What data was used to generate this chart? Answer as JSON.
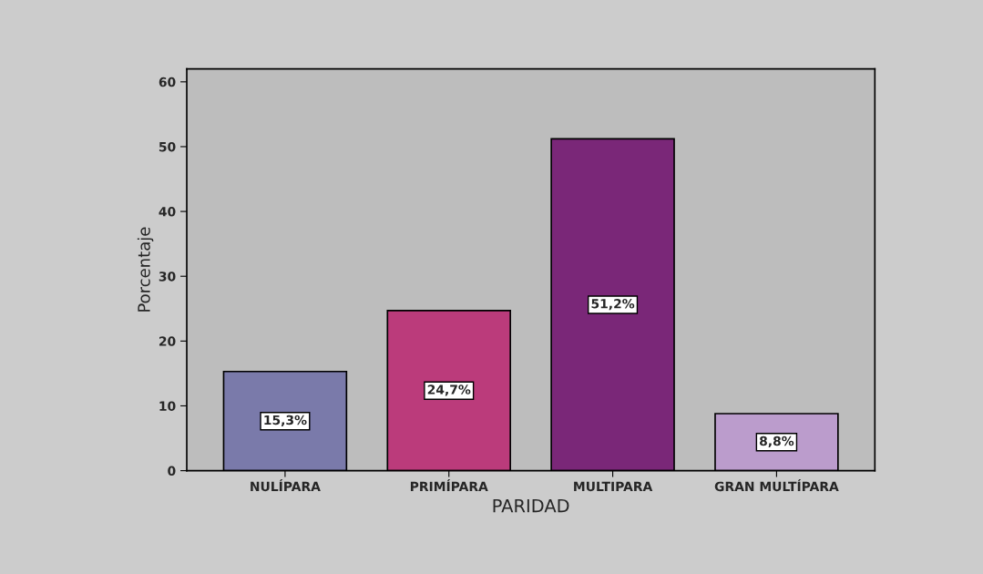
{
  "chart_data": {
    "type": "bar",
    "xlabel": "PARIDAD",
    "ylabel": "Porcentaje",
    "categories": [
      "NULÍPARA",
      "PRIMÍPARA",
      "MULTIPARA",
      "GRAN MULTÍPARA"
    ],
    "values": [
      15.3,
      24.7,
      51.2,
      8.8
    ],
    "colors": [
      "#7a7aaa",
      "#bb3b7b",
      "#7a2778",
      "#bb9ccc"
    ],
    "value_labels": [
      "15,3%",
      "24,7%",
      "51,2%",
      "8,8%"
    ],
    "ylim": [
      0,
      62
    ],
    "yticks": [
      0,
      10,
      20,
      30,
      40,
      50,
      60
    ],
    "grid": false,
    "legend": false
  }
}
